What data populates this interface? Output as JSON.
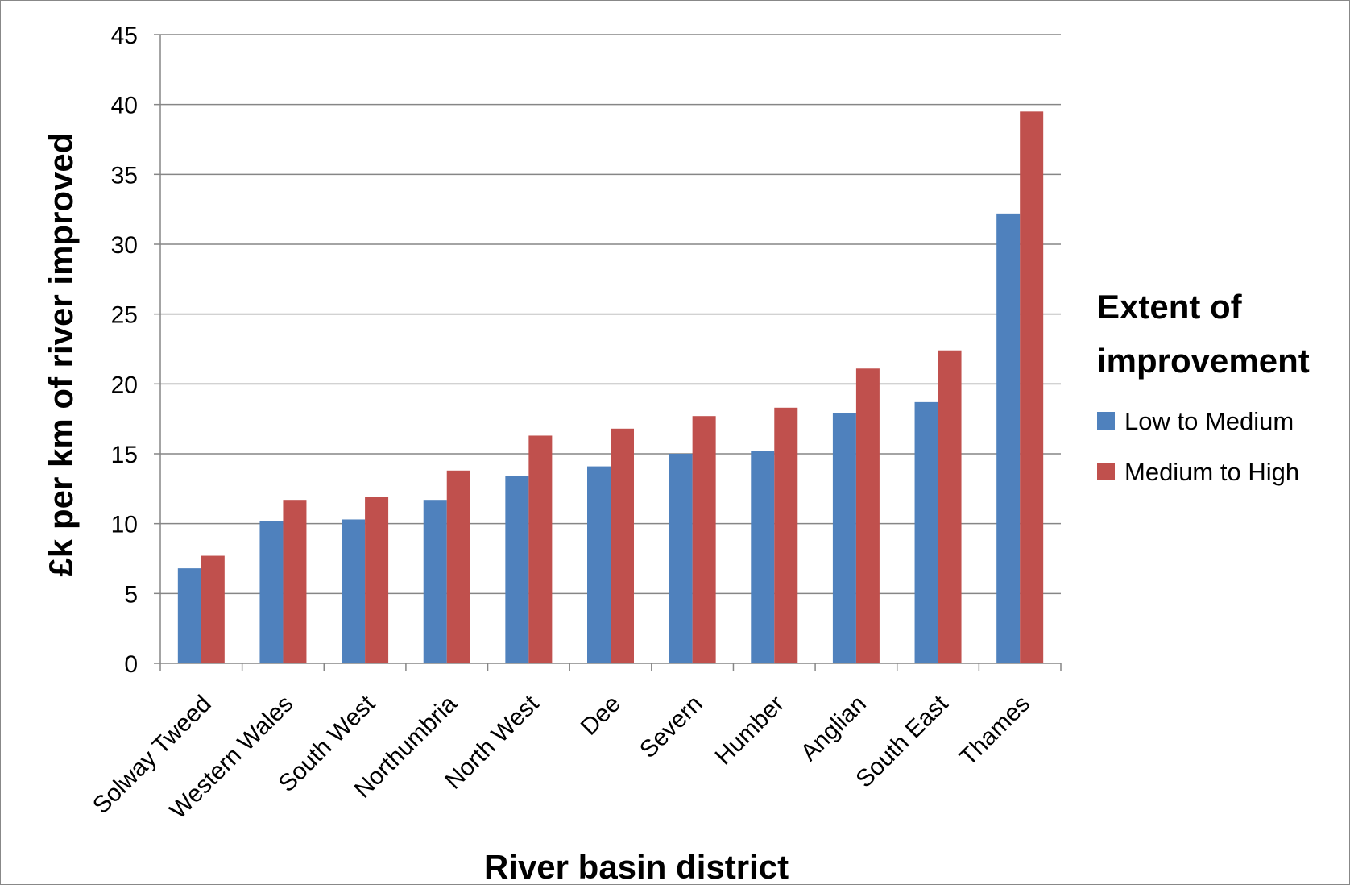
{
  "chart_data": {
    "type": "bar",
    "title": "",
    "xlabel": "River basin district",
    "ylabel": "£k per km  of river improved",
    "ylim": [
      0,
      45
    ],
    "yticks": [
      0,
      5,
      10,
      15,
      20,
      25,
      30,
      35,
      40,
      45
    ],
    "grid": true,
    "legend": {
      "title_lines": [
        "Extent of",
        "improvement"
      ],
      "placement": "right"
    },
    "categories": [
      "Solway Tweed",
      "Western Wales",
      "South West",
      "Northumbria",
      "North West",
      "Dee",
      "Severn",
      "Humber",
      "Anglian",
      "South East",
      "Thames"
    ],
    "series": [
      {
        "name": "Low to Medium",
        "color": "#4F81BD",
        "values": [
          6.8,
          10.2,
          10.3,
          11.7,
          13.4,
          14.1,
          15.0,
          15.2,
          17.9,
          18.7,
          32.2
        ]
      },
      {
        "name": "Medium to High",
        "color": "#C0504D",
        "values": [
          7.7,
          11.7,
          11.9,
          13.8,
          16.3,
          16.8,
          17.7,
          18.3,
          21.1,
          22.4,
          39.5
        ]
      }
    ],
    "gridline_color": "#868686"
  }
}
